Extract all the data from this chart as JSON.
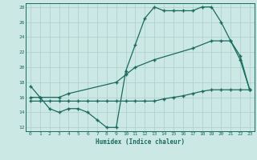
{
  "xlabel": "Humidex (Indice chaleur)",
  "bg_color": "#cce8e4",
  "grid_color": "#aaceca",
  "line_color": "#1a6b5e",
  "line_width": 0.9,
  "marker": "+",
  "marker_size": 3,
  "xlim": [
    -0.5,
    23.5
  ],
  "ylim": [
    11.5,
    28.5
  ],
  "xticks": [
    0,
    1,
    2,
    3,
    4,
    5,
    6,
    7,
    8,
    9,
    10,
    11,
    12,
    13,
    14,
    15,
    16,
    17,
    18,
    19,
    20,
    21,
    22,
    23
  ],
  "yticks": [
    12,
    14,
    16,
    18,
    20,
    22,
    24,
    26,
    28
  ],
  "line1_x": [
    0,
    1,
    2,
    3,
    4,
    5,
    6,
    7,
    8,
    9,
    10,
    11,
    12,
    13,
    14,
    15,
    16,
    17,
    18,
    19,
    20,
    21,
    22,
    23
  ],
  "line1_y": [
    17.5,
    16.0,
    14.5,
    14.0,
    14.5,
    14.5,
    14.0,
    13.0,
    12.0,
    12.0,
    19.5,
    23.0,
    26.5,
    28.0,
    27.5,
    27.5,
    27.5,
    27.5,
    28.0,
    28.0,
    26.0,
    23.5,
    21.0,
    17.0
  ],
  "line2_x": [
    0,
    1,
    3,
    4,
    9,
    10,
    11,
    13,
    17,
    19,
    20,
    21,
    22,
    23
  ],
  "line2_y": [
    16.0,
    16.0,
    16.0,
    16.5,
    18.0,
    19.0,
    20.0,
    21.0,
    22.5,
    23.5,
    23.5,
    23.5,
    21.5,
    17.0
  ],
  "line3_x": [
    0,
    1,
    2,
    3,
    4,
    5,
    6,
    7,
    8,
    9,
    10,
    11,
    12,
    13,
    14,
    15,
    16,
    17,
    18,
    19,
    20,
    21,
    22,
    23
  ],
  "line3_y": [
    15.5,
    15.5,
    15.5,
    15.5,
    15.5,
    15.5,
    15.5,
    15.5,
    15.5,
    15.5,
    15.5,
    15.5,
    15.5,
    15.5,
    15.8,
    16.0,
    16.2,
    16.5,
    16.8,
    17.0,
    17.0,
    17.0,
    17.0,
    17.0
  ]
}
